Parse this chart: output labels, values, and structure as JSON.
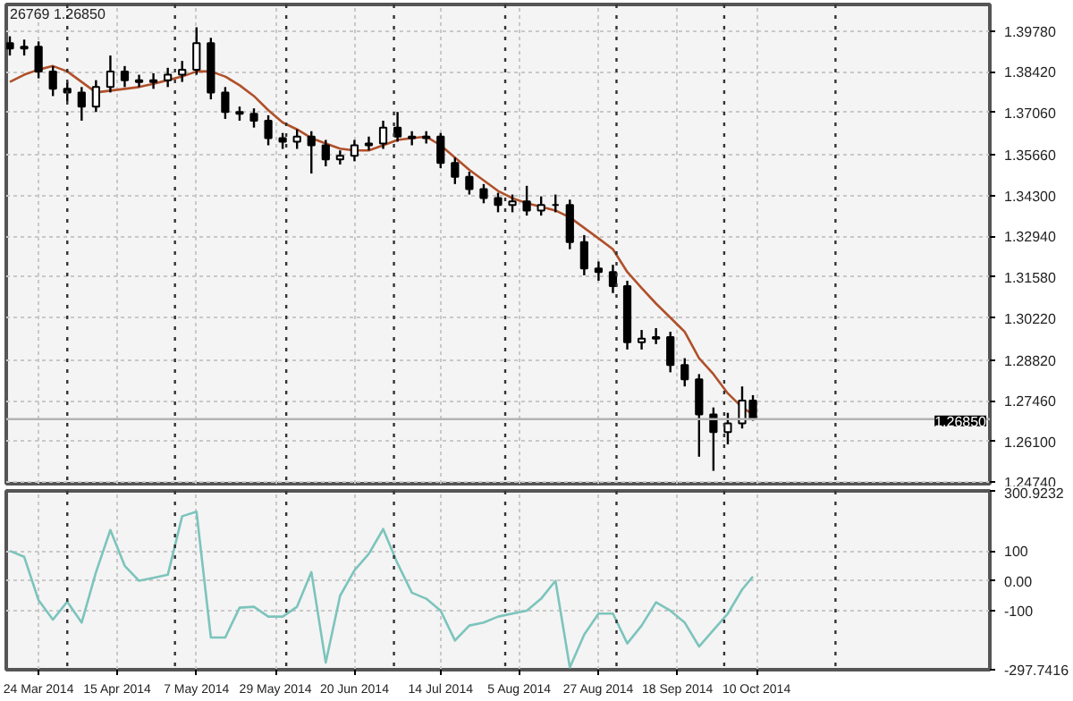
{
  "chart_data": [
    {
      "type": "candlestick",
      "color": "#000000",
      "annotations": [
        "26769 1.26850"
      ],
      "grid": true,
      "tick_labels": "y",
      "xlim": [
        "2014-03-15",
        "2014-12-14"
      ],
      "ylim": [
        1.247,
        1.4066
      ],
      "yticks": [
        {
          "value": 1.3978,
          "label": "1.39780"
        },
        {
          "value": 1.3842,
          "label": "1.38420"
        },
        {
          "value": 1.3706,
          "label": "1.37060"
        },
        {
          "value": 1.3566,
          "label": "1.35660"
        },
        {
          "value": 1.343,
          "label": "1.34300"
        },
        {
          "value": 1.3294,
          "label": "1.32940"
        },
        {
          "value": 1.3158,
          "label": "1.31580"
        },
        {
          "value": 1.3022,
          "label": "1.30220"
        },
        {
          "value": 1.2882,
          "label": "1.28820"
        },
        {
          "value": 1.2746,
          "label": "1.27460"
        },
        {
          "value": 1.261,
          "label": "1.26100"
        },
        {
          "value": 1.2474,
          "label": "1.24740"
        }
      ],
      "xticks": [
        {
          "value": "2014-03-24",
          "label": null
        },
        {
          "value": "2014-04-15",
          "label": null
        },
        {
          "value": "2014-05-07",
          "label": null
        },
        {
          "value": "2014-05-29",
          "label": null
        },
        {
          "value": "2014-06-20",
          "label": null
        },
        {
          "value": "2014-07-14",
          "label": null
        },
        {
          "value": "2014-08-05",
          "label": null
        },
        {
          "value": "2014-08-27",
          "label": null
        },
        {
          "value": "2014-09-18",
          "label": null
        },
        {
          "value": "2014-10-10",
          "label": null
        }
      ],
      "ref_lines": [
        {
          "axis": "y",
          "value": 1.2685,
          "label": "1.26850",
          "color": "#b4b4b4",
          "line_style": "solid"
        },
        {
          "axis": "x",
          "value": "2014-04-01",
          "color": "#333333",
          "line_style": "dotted"
        },
        {
          "axis": "x",
          "value": "2014-05-01",
          "color": "#333333",
          "line_style": "dotted"
        },
        {
          "axis": "x",
          "value": "2014-06-01",
          "color": "#333333",
          "line_style": "dotted"
        },
        {
          "axis": "x",
          "value": "2014-07-01",
          "color": "#333333",
          "line_style": "dotted"
        },
        {
          "axis": "x",
          "value": "2014-08-01",
          "color": "#333333",
          "line_style": "dotted"
        },
        {
          "axis": "x",
          "value": "2014-09-01",
          "color": "#333333",
          "line_style": "dotted"
        },
        {
          "axis": "x",
          "value": "2014-10-01",
          "color": "#333333",
          "line_style": "dotted"
        },
        {
          "axis": "x",
          "value": "2014-11-01",
          "color": "#333333",
          "line_style": "dotted"
        }
      ],
      "x": [
        "2014-03-16",
        "2014-03-20",
        "2014-03-24",
        "2014-03-28",
        "2014-04-01",
        "2014-04-05",
        "2014-04-09",
        "2014-04-13",
        "2014-04-17",
        "2014-04-21",
        "2014-04-25",
        "2014-04-29",
        "2014-05-03",
        "2014-05-07",
        "2014-05-11",
        "2014-05-15",
        "2014-05-19",
        "2014-05-23",
        "2014-05-27",
        "2014-05-31",
        "2014-06-04",
        "2014-06-08",
        "2014-06-12",
        "2014-06-16",
        "2014-06-20",
        "2014-06-24",
        "2014-06-28",
        "2014-07-02",
        "2014-07-06",
        "2014-07-10",
        "2014-07-14",
        "2014-07-18",
        "2014-07-22",
        "2014-07-26",
        "2014-07-30",
        "2014-08-03",
        "2014-08-07",
        "2014-08-11",
        "2014-08-15",
        "2014-08-19",
        "2014-08-23",
        "2014-08-27",
        "2014-08-31",
        "2014-09-04",
        "2014-09-08",
        "2014-09-12",
        "2014-09-16",
        "2014-09-20",
        "2014-09-24",
        "2014-09-28",
        "2014-10-02",
        "2014-10-06",
        "2014-10-09"
      ],
      "ohlc": [
        [
          1.3937,
          1.396,
          1.3896,
          1.3919
        ],
        [
          1.3919,
          1.3949,
          1.3896,
          1.3925
        ],
        [
          1.3925,
          1.3943,
          1.382,
          1.3843
        ],
        [
          1.3843,
          1.3861,
          1.3761,
          1.3785
        ],
        [
          1.3785,
          1.3808,
          1.3744,
          1.3773
        ],
        [
          1.3773,
          1.3791,
          1.3679,
          1.3726
        ],
        [
          1.3726,
          1.3814,
          1.3708,
          1.3791
        ],
        [
          1.3791,
          1.3896,
          1.3773,
          1.3843
        ],
        [
          1.3843,
          1.3861,
          1.3791,
          1.3814
        ],
        [
          1.3814,
          1.3832,
          1.3791,
          1.3808
        ],
        [
          1.3808,
          1.3837,
          1.3785,
          1.3814
        ],
        [
          1.3814,
          1.3855,
          1.3791,
          1.3832
        ],
        [
          1.3832,
          1.3878,
          1.3808,
          1.3849
        ],
        [
          1.3849,
          1.399,
          1.3832,
          1.3937
        ],
        [
          1.3937,
          1.3955,
          1.375,
          1.3773
        ],
        [
          1.3773,
          1.3791,
          1.3685,
          1.3708
        ],
        [
          1.3708,
          1.3726,
          1.3679,
          1.3702
        ],
        [
          1.3702,
          1.372,
          1.3656,
          1.3679
        ],
        [
          1.3679,
          1.3697,
          1.3597,
          1.3621
        ],
        [
          1.3621,
          1.3638,
          1.3585,
          1.3609
        ],
        [
          1.3609,
          1.365,
          1.3585,
          1.3626
        ],
        [
          1.3626,
          1.3644,
          1.3503,
          1.3597
        ],
        [
          1.3597,
          1.3615,
          1.3527,
          1.355
        ],
        [
          1.355,
          1.358,
          1.3533,
          1.3562
        ],
        [
          1.3562,
          1.3615,
          1.3544,
          1.3597
        ],
        [
          1.3597,
          1.3626,
          1.358,
          1.3603
        ],
        [
          1.3603,
          1.3679,
          1.3585,
          1.3656
        ],
        [
          1.3656,
          1.3708,
          1.3609,
          1.3626
        ],
        [
          1.3626,
          1.3644,
          1.3597,
          1.3621
        ],
        [
          1.3621,
          1.3644,
          1.3603,
          1.3626
        ],
        [
          1.3626,
          1.3638,
          1.3521,
          1.3538
        ],
        [
          1.3538,
          1.3556,
          1.3468,
          1.3492
        ],
        [
          1.3492,
          1.3509,
          1.3433,
          1.3451
        ],
        [
          1.3451,
          1.3468,
          1.3404,
          1.3421
        ],
        [
          1.3421,
          1.3439,
          1.3374,
          1.3398
        ],
        [
          1.3398,
          1.3433,
          1.3374,
          1.341
        ],
        [
          1.341,
          1.3462,
          1.3363,
          1.338
        ],
        [
          1.338,
          1.3427,
          1.3363,
          1.3398
        ],
        [
          1.3398,
          1.3433,
          1.3374,
          1.3398
        ],
        [
          1.3398,
          1.3416,
          1.3251,
          1.3275
        ],
        [
          1.3275,
          1.3298,
          1.3164,
          1.3187
        ],
        [
          1.3187,
          1.321,
          1.3146,
          1.3175
        ],
        [
          1.3175,
          1.3199,
          1.3105,
          1.3128
        ],
        [
          1.3128,
          1.3146,
          1.2917,
          1.2941
        ],
        [
          1.2941,
          1.2982,
          1.2917,
          1.2953
        ],
        [
          1.2953,
          1.2988,
          1.2935,
          1.2958
        ],
        [
          1.2958,
          1.2976,
          1.2841,
          1.2865
        ],
        [
          1.2865,
          1.2888,
          1.2794,
          1.2818
        ],
        [
          1.2818,
          1.2835,
          1.256,
          1.2701
        ],
        [
          1.2701,
          1.2724,
          1.2513,
          1.2642
        ],
        [
          1.2642,
          1.2706,
          1.2601,
          1.2671
        ],
        [
          1.2671,
          1.2794,
          1.2654,
          1.2747
        ],
        [
          1.2747,
          1.2765,
          1.268,
          1.2685
        ]
      ],
      "series": [
        {
          "type": "line",
          "color": "#b0502a",
          "values": [
            1.3808,
            1.3832,
            1.3849,
            1.3861,
            1.3843,
            1.3808,
            1.3773,
            1.3779,
            1.3785,
            1.3791,
            1.3802,
            1.3814,
            1.3826,
            1.3843,
            1.3843,
            1.3826,
            1.3797,
            1.3761,
            1.3714,
            1.3673,
            1.365,
            1.3621,
            1.3603,
            1.3586,
            1.358,
            1.358,
            1.3597,
            1.3615,
            1.3621,
            1.3626,
            1.3597,
            1.3556,
            1.3515,
            1.348,
            1.3445,
            1.3421,
            1.3404,
            1.3392,
            1.338,
            1.3357,
            1.3322,
            1.3287,
            1.3251,
            1.3175,
            1.3122,
            1.307,
            1.3023,
            1.2976,
            1.2888,
            1.2835,
            1.2771,
            1.2724,
            1.2701
          ]
        }
      ]
    },
    {
      "type": "line",
      "grid": true,
      "xlim": [
        "2014-03-15",
        "2014-12-14"
      ],
      "ylim": [
        -297.7416,
        300.9232
      ],
      "yticks": [
        {
          "value": 300.9232,
          "label": "300.9232"
        },
        100,
        {
          "value": 0,
          "label": "0.00"
        },
        -100,
        {
          "value": -297.7416,
          "label": "-297.7416"
        }
      ],
      "xticks": [
        {
          "value": "2014-03-24",
          "label": "24 Mar 2014"
        },
        {
          "value": "2014-04-15",
          "label": "15 Apr 2014"
        },
        {
          "value": "2014-05-07",
          "label": "7 May 2014"
        },
        {
          "value": "2014-05-29",
          "label": "29 May 2014"
        },
        {
          "value": "2014-06-20",
          "label": "20 Jun 2014"
        },
        {
          "value": "2014-07-14",
          "label": "14 Jul 2014"
        },
        {
          "value": "2014-08-05",
          "label": "5 Aug 2014"
        },
        {
          "value": "2014-08-27",
          "label": "27 Aug 2014"
        },
        {
          "value": "2014-09-18",
          "label": "18 Sep 2014"
        },
        {
          "value": "2014-10-10",
          "label": "10 Oct 2014"
        }
      ],
      "ref_lines": [
        {
          "axis": "x",
          "value": "2014-04-01",
          "color": "#333333",
          "line_style": "dotted"
        },
        {
          "axis": "x",
          "value": "2014-05-01",
          "color": "#333333",
          "line_style": "dotted"
        },
        {
          "axis": "x",
          "value": "2014-06-01",
          "color": "#333333",
          "line_style": "dotted"
        },
        {
          "axis": "x",
          "value": "2014-07-01",
          "color": "#333333",
          "line_style": "dotted"
        },
        {
          "axis": "x",
          "value": "2014-08-01",
          "color": "#333333",
          "line_style": "dotted"
        },
        {
          "axis": "x",
          "value": "2014-09-01",
          "color": "#333333",
          "line_style": "dotted"
        },
        {
          "axis": "x",
          "value": "2014-10-01",
          "color": "#333333",
          "line_style": "dotted"
        },
        {
          "axis": "x",
          "value": "2014-11-01",
          "color": "#333333",
          "line_style": "dotted"
        }
      ],
      "x": [
        "2014-03-16",
        "2014-03-20",
        "2014-03-24",
        "2014-03-28",
        "2014-04-01",
        "2014-04-05",
        "2014-04-09",
        "2014-04-13",
        "2014-04-17",
        "2014-04-21",
        "2014-04-25",
        "2014-04-29",
        "2014-05-03",
        "2014-05-07",
        "2014-05-11",
        "2014-05-15",
        "2014-05-19",
        "2014-05-23",
        "2014-05-27",
        "2014-05-31",
        "2014-06-04",
        "2014-06-08",
        "2014-06-12",
        "2014-06-16",
        "2014-06-20",
        "2014-06-24",
        "2014-06-28",
        "2014-07-02",
        "2014-07-06",
        "2014-07-10",
        "2014-07-14",
        "2014-07-18",
        "2014-07-22",
        "2014-07-26",
        "2014-07-30",
        "2014-08-03",
        "2014-08-07",
        "2014-08-11",
        "2014-08-15",
        "2014-08-19",
        "2014-08-23",
        "2014-08-27",
        "2014-08-31",
        "2014-09-04",
        "2014-09-08",
        "2014-09-12",
        "2014-09-16",
        "2014-09-20",
        "2014-09-24",
        "2014-09-28",
        "2014-10-02",
        "2014-10-06",
        "2014-10-09"
      ],
      "series": [
        {
          "color": "#7cc4bc",
          "values": [
            100,
            80,
            -65,
            -130,
            -70,
            -140,
            29,
            170,
            50,
            0,
            10,
            20,
            216,
            231,
            -190,
            -190,
            -90,
            -87,
            -120,
            -120,
            -87,
            29,
            -274,
            -50,
            35,
            90,
            173,
            58,
            -40,
            -60,
            -100,
            -200,
            -150,
            -140,
            -120,
            -110,
            -100,
            -60,
            0,
            -290,
            -180,
            -110,
            -110,
            -210,
            -150,
            -72,
            -100,
            -140,
            -220,
            -165,
            -110,
            -29,
            14
          ]
        }
      ]
    }
  ]
}
